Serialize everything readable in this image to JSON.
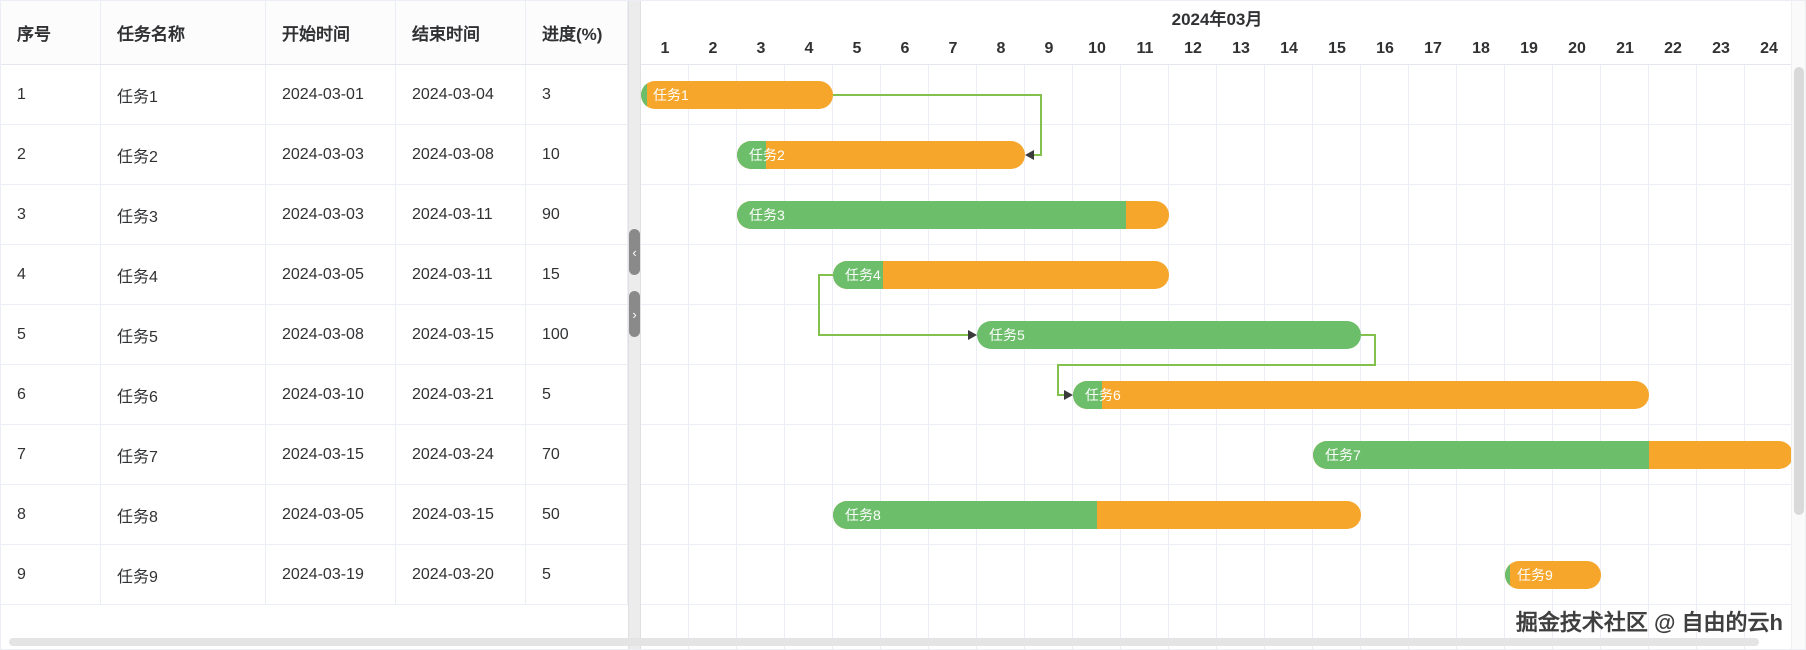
{
  "chart_data": {
    "type": "bar",
    "subtype": "gantt",
    "title": "2024年03月",
    "x_axis_days": [
      1,
      2,
      3,
      4,
      5,
      6,
      7,
      8,
      9,
      10,
      11,
      12,
      13,
      14,
      15,
      16,
      17,
      18,
      19,
      20,
      21,
      22,
      23,
      24
    ],
    "day_count": 24,
    "tasks": [
      {
        "index": 1,
        "name": "任务1",
        "start": "2024-03-01",
        "end": "2024-03-04",
        "progress": 3
      },
      {
        "index": 2,
        "name": "任务2",
        "start": "2024-03-03",
        "end": "2024-03-08",
        "progress": 10
      },
      {
        "index": 3,
        "name": "任务3",
        "start": "2024-03-03",
        "end": "2024-03-11",
        "progress": 90
      },
      {
        "index": 4,
        "name": "任务4",
        "start": "2024-03-05",
        "end": "2024-03-11",
        "progress": 15
      },
      {
        "index": 5,
        "name": "任务5",
        "start": "2024-03-08",
        "end": "2024-03-15",
        "progress": 100
      },
      {
        "index": 6,
        "name": "任务6",
        "start": "2024-03-10",
        "end": "2024-03-21",
        "progress": 5
      },
      {
        "index": 7,
        "name": "任务7",
        "start": "2024-03-15",
        "end": "2024-03-24",
        "progress": 70
      },
      {
        "index": 8,
        "name": "任务8",
        "start": "2024-03-05",
        "end": "2024-03-15",
        "progress": 50
      },
      {
        "index": 9,
        "name": "任务9",
        "start": "2024-03-19",
        "end": "2024-03-20",
        "progress": 5
      }
    ],
    "links": [
      {
        "from": "任务1",
        "to": "任务2",
        "from_anchor": "end",
        "to_anchor": "end"
      },
      {
        "from": "任务4",
        "to": "任务5",
        "from_anchor": "start",
        "to_anchor": "start"
      },
      {
        "from": "任务5",
        "to": "任务6",
        "from_anchor": "end",
        "to_anchor": "start"
      }
    ]
  },
  "table": {
    "columns": [
      {
        "key": "index",
        "label": "序号"
      },
      {
        "key": "name",
        "label": "任务名称"
      },
      {
        "key": "start",
        "label": "开始时间"
      },
      {
        "key": "end",
        "label": "结束时间"
      },
      {
        "key": "progress",
        "label": "进度(%)"
      }
    ]
  },
  "colors": {
    "bar_orange": "#F5A62B",
    "bar_green": "#6DBE6B",
    "link_line": "#82C14E",
    "link_arrow": "#3B3B3B"
  },
  "splitter": {
    "collapse_left_glyph": "‹",
    "collapse_right_glyph": "›"
  },
  "watermark": "掘金技术社区 @ 自由的云h"
}
